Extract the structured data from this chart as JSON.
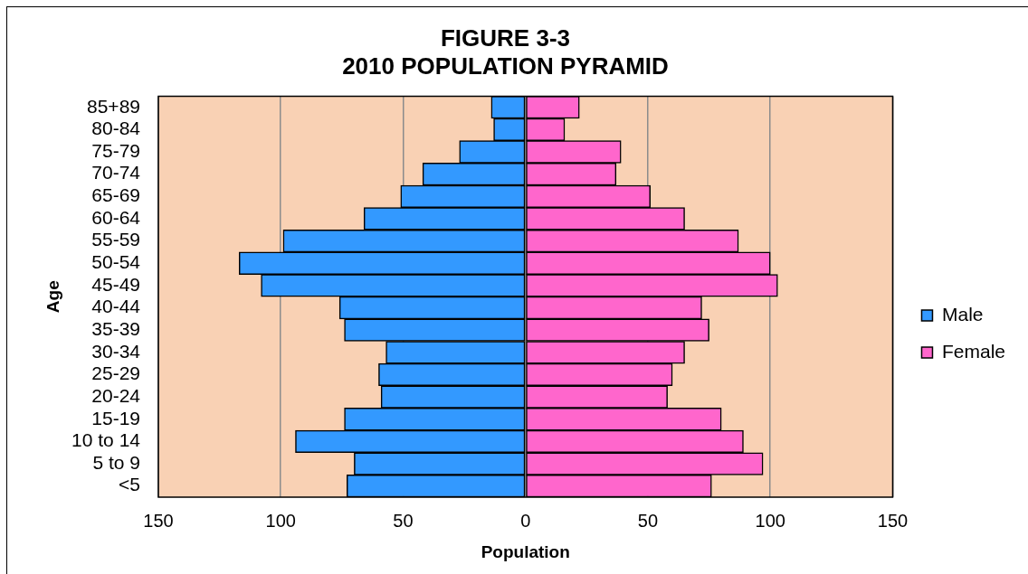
{
  "chart_data": {
    "type": "bar",
    "title": "FIGURE 3-3",
    "subtitle": "2010 POPULATION PYRAMID",
    "xlabel": "Population",
    "ylabel": "Age",
    "orientation": "horizontal",
    "stacked": true,
    "categories": [
      "85+89",
      "80-84",
      "75-79",
      "70-74",
      "65-69",
      "60-64",
      "55-59",
      "50-54",
      "45-49",
      "40-44",
      "35-39",
      "30-34",
      "25-29",
      "20-24",
      "15-19",
      "10 to 14",
      "5 to 9",
      "<5"
    ],
    "series": [
      {
        "name": "Male",
        "color": "#3399ff",
        "values": [
          -14,
          -13,
          -27,
          -42,
          -51,
          -66,
          -99,
          -117,
          -108,
          -76,
          -74,
          -57,
          -60,
          -59,
          -74,
          -94,
          -70,
          -73
        ]
      },
      {
        "name": "Female",
        "color": "#ff66cc",
        "values": [
          22,
          16,
          39,
          37,
          51,
          65,
          87,
          100,
          103,
          72,
          75,
          65,
          60,
          58,
          80,
          89,
          97,
          76
        ]
      }
    ],
    "xlim": [
      -150,
      150
    ],
    "xticks": [
      {
        "value": -150,
        "label": "150"
      },
      {
        "value": -100,
        "label": "100"
      },
      {
        "value": -50,
        "label": "50"
      },
      0,
      50,
      100,
      150
    ],
    "grid": "x",
    "legend": "right"
  }
}
